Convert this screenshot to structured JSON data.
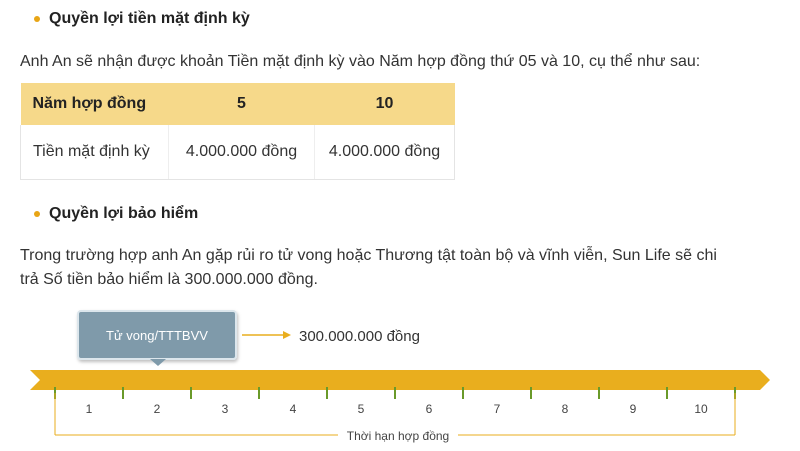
{
  "section1": {
    "title": "Quyền lợi tiền mặt định kỳ",
    "intro": "Anh An sẽ nhận được khoản Tiền mặt định kỳ vào Năm hợp đồng thứ 05 và 10, cụ thể như sau:"
  },
  "table": {
    "headers": [
      "Năm hợp đồng",
      "5",
      "10"
    ],
    "row": [
      "Tiền mặt định kỳ",
      "4.000.000 đồng",
      "4.000.000 đồng"
    ]
  },
  "section2": {
    "title": "Quyền lợi bảo hiểm",
    "line1": "Trong trường hợp anh An gặp rủi ro tử vong hoặc Thương tật toàn bộ và vĩnh viễn, Sun Life sẽ chi",
    "line2": "trả Số tiền bảo hiểm là 300.000.000 đồng."
  },
  "timeline": {
    "event_label": "Tử vong/TTTBVV",
    "payout": "300.000.000 đồng",
    "years": [
      "1",
      "2",
      "3",
      "4",
      "5",
      "6",
      "7",
      "8",
      "9",
      "10"
    ],
    "duration_label": "Thời hạn hợp đồng",
    "colors": {
      "bar": "#e9ae1e",
      "tick": "#6a9a2a",
      "box": "#7f9aaa",
      "line": "#e9ae1e"
    }
  }
}
